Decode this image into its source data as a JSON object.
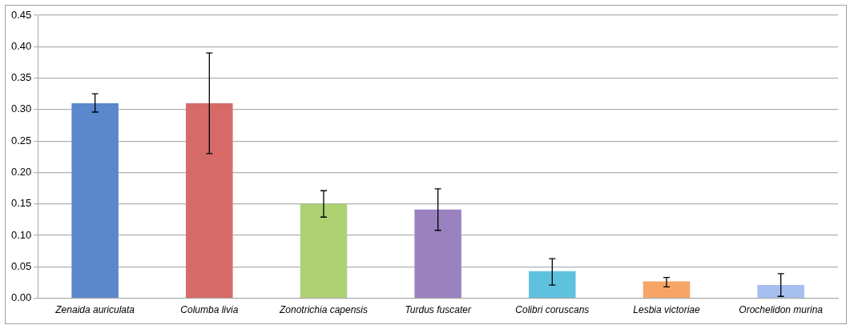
{
  "chart_data": {
    "type": "bar",
    "categories": [
      "Zenaida auriculata",
      "Columba livia",
      "Zonotrichia capensis",
      "Turdus fuscater",
      "Colibri coruscans",
      "Lesbia victoriae",
      "Orochelidon murina"
    ],
    "values": [
      0.31,
      0.31,
      0.15,
      0.141,
      0.043,
      0.027,
      0.021
    ],
    "colors": [
      "#5b87cc",
      "#d66a68",
      "#aed172",
      "#9a82c0",
      "#5ec2de",
      "#f7a566",
      "#a6bff0"
    ],
    "errors": [
      [
        0.296,
        0.325
      ],
      [
        0.23,
        0.39
      ],
      [
        0.129,
        0.171
      ],
      [
        0.108,
        0.174
      ],
      [
        0.021,
        0.063
      ],
      [
        0.018,
        0.033
      ],
      [
        0.003,
        0.039
      ]
    ],
    "ylim": [
      0,
      0.45
    ],
    "yticks": [
      {
        "value": 0,
        "label": "0.00"
      },
      {
        "value": 0.05,
        "label": "0.05"
      },
      {
        "value": 0.1,
        "label": "0.10"
      },
      {
        "value": 0.15,
        "label": "0.15"
      },
      {
        "value": 0.2,
        "label": "0.20"
      },
      {
        "value": 0.25,
        "label": "0.25"
      },
      {
        "value": 0.3,
        "label": "0.30"
      },
      {
        "value": 0.35,
        "label": "0.35"
      },
      {
        "value": 0.4,
        "label": "0.40"
      },
      {
        "value": 0.45,
        "label": "0.45"
      }
    ],
    "grid": "y",
    "legend": false
  }
}
